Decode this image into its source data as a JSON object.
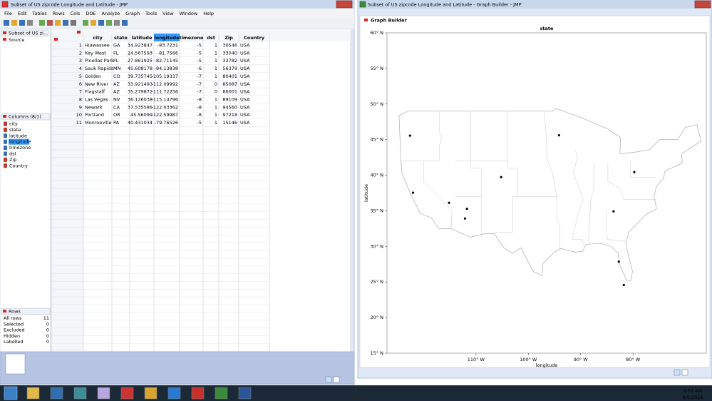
{
  "data_window": {
    "title": "Subset of US zipcode Longitude and Latitude - JMP",
    "menu": [
      "File",
      "Edit",
      "Tables",
      "Rows",
      "Cols",
      "DOE",
      "Analyze",
      "Graph",
      "Tools",
      "View",
      "Window",
      "Help"
    ],
    "table_name": "Subset of US zi...",
    "source": "Source",
    "columns_header": "Columns (8/1)",
    "columns": [
      "city",
      "state",
      "latitude",
      "longitude",
      "timezone",
      "dst",
      "Zip",
      "Country"
    ],
    "rows_header": "Rows",
    "row_states": [
      [
        "All rows",
        11
      ],
      [
        "Selected",
        0
      ],
      [
        "Excluded",
        0
      ],
      [
        "Hidden",
        0
      ],
      [
        "Labelled",
        0
      ]
    ],
    "table": {
      "columns": [
        "city",
        "state",
        "latitude",
        "longitude",
        "timezone",
        "dst",
        "Zip",
        "Country"
      ],
      "rows": [
        [
          1,
          "Hiawassee",
          "GA",
          34.923847,
          -83.7231,
          -5,
          1,
          30546,
          "USA"
        ],
        [
          2,
          "Key West",
          "FL",
          24.567593,
          -81.7566,
          -5,
          1,
          33040,
          "USA"
        ],
        [
          3,
          "Pinellas Park",
          "FL",
          27.861925,
          -82.71145,
          -5,
          1,
          33782,
          "USA"
        ],
        [
          4,
          "Sauk Rapids",
          "MN",
          45.608178,
          -94.13838,
          -6,
          1,
          56379,
          "USA"
        ],
        [
          5,
          "Golden",
          "CO",
          39.735745,
          -105.19337,
          -7,
          1,
          80401,
          "USA"
        ],
        [
          6,
          "New River",
          "AZ",
          33.921493,
          -112.09992,
          -7,
          0,
          85087,
          "USA"
        ],
        [
          7,
          "Flagstaff",
          "AZ",
          35.279872,
          -111.72256,
          -7,
          0,
          86001,
          "USA"
        ],
        [
          8,
          "Las Vegas",
          "NV",
          36.126038,
          -115.14796,
          -8,
          1,
          89109,
          "USA"
        ],
        [
          9,
          "Newark",
          "CA",
          37.535586,
          -122.03362,
          -8,
          1,
          94560,
          "USA"
        ],
        [
          10,
          "Portland",
          "OR",
          45.56099,
          -122.59987,
          -8,
          1,
          97218,
          "USA"
        ],
        [
          11,
          "Monroeville",
          "PA",
          40.431034,
          -79.76526,
          -5,
          1,
          15146,
          "USA"
        ]
      ]
    }
  },
  "graph_window": {
    "title": "Subset of US zipcode Longitude and Latitude - Graph Builder - JMP",
    "header": "Graph Builder",
    "chart_data": {
      "type": "scatter",
      "title": "state",
      "x_label": "longitude",
      "y_label": "latitude",
      "xlim": [
        -127,
        -66
      ],
      "ylim": [
        15,
        60
      ],
      "xticks": [
        {
          "value": -110,
          "label": "110° W"
        },
        {
          "value": -100,
          "label": "100° W"
        },
        {
          "value": -90,
          "label": "90° W"
        },
        {
          "value": -80,
          "label": "80° W"
        }
      ],
      "yticks": [
        {
          "value": 15,
          "label": "15° N"
        },
        {
          "value": 20,
          "label": "20° N"
        },
        {
          "value": 25,
          "label": "25° N"
        },
        {
          "value": 30,
          "label": "30° N"
        },
        {
          "value": 35,
          "label": "35° N"
        },
        {
          "value": 40,
          "label": "40° N"
        },
        {
          "value": 45,
          "label": "45° N"
        },
        {
          "value": 50,
          "label": "50° N"
        },
        {
          "value": 55,
          "label": "55° N"
        },
        {
          "value": 60,
          "label": "60° N"
        }
      ],
      "point_color": "#000000"
    }
  },
  "taskbar": {
    "time": "6:52 AM",
    "date": "4/5/2016"
  }
}
